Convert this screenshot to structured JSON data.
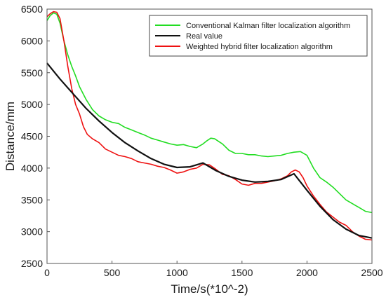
{
  "chart_data": {
    "type": "line",
    "xlabel": "Time/s(*10^-2)",
    "ylabel": "Distance/mm",
    "xlim": [
      0,
      2500
    ],
    "ylim": [
      2500,
      6500
    ],
    "xticks": [
      0,
      500,
      1000,
      1500,
      2000,
      2500
    ],
    "yticks": [
      2500,
      3000,
      3500,
      4000,
      4500,
      5000,
      5500,
      6000,
      6500
    ],
    "grid": false,
    "legend_position": "top-right",
    "series": [
      {
        "name": "Conventional Kalman filter localization algorithm",
        "color": "#22dd22",
        "x": [
          0,
          25,
          50,
          75,
          100,
          130,
          160,
          190,
          220,
          250,
          300,
          350,
          400,
          450,
          500,
          550,
          600,
          650,
          700,
          750,
          800,
          850,
          900,
          950,
          1000,
          1050,
          1100,
          1150,
          1200,
          1230,
          1260,
          1290,
          1320,
          1350,
          1400,
          1450,
          1500,
          1550,
          1600,
          1650,
          1700,
          1750,
          1800,
          1850,
          1900,
          1950,
          2000,
          2050,
          2100,
          2150,
          2200,
          2250,
          2300,
          2350,
          2400,
          2450,
          2500
        ],
        "y": [
          6320,
          6400,
          6440,
          6420,
          6280,
          6000,
          5780,
          5600,
          5450,
          5280,
          5080,
          4920,
          4820,
          4760,
          4720,
          4700,
          4640,
          4600,
          4560,
          4520,
          4470,
          4440,
          4410,
          4380,
          4360,
          4370,
          4340,
          4320,
          4380,
          4430,
          4470,
          4460,
          4420,
          4380,
          4280,
          4230,
          4230,
          4210,
          4210,
          4190,
          4180,
          4190,
          4200,
          4230,
          4250,
          4260,
          4200,
          4000,
          3850,
          3780,
          3700,
          3600,
          3500,
          3440,
          3380,
          3320,
          3300
        ]
      },
      {
        "name": "Real value",
        "color": "#111111",
        "x": [
          0,
          100,
          200,
          300,
          400,
          500,
          600,
          700,
          800,
          900,
          1000,
          1100,
          1200,
          1300,
          1400,
          1500,
          1600,
          1700,
          1800,
          1900,
          2000,
          2100,
          2200,
          2300,
          2400,
          2500
        ],
        "y": [
          5650,
          5400,
          5170,
          4940,
          4740,
          4560,
          4400,
          4270,
          4150,
          4060,
          4010,
          4020,
          4080,
          3960,
          3870,
          3810,
          3780,
          3790,
          3820,
          3910,
          3650,
          3400,
          3190,
          3040,
          2940,
          2900
        ]
      },
      {
        "name": "Weighted hybrid filter localization algorithm",
        "color": "#ee1111",
        "x": [
          0,
          25,
          50,
          75,
          100,
          130,
          160,
          190,
          220,
          250,
          280,
          310,
          350,
          400,
          450,
          500,
          550,
          600,
          650,
          700,
          750,
          800,
          850,
          900,
          950,
          1000,
          1050,
          1100,
          1150,
          1200,
          1250,
          1300,
          1350,
          1400,
          1450,
          1500,
          1550,
          1600,
          1650,
          1700,
          1750,
          1800,
          1850,
          1880,
          1910,
          1940,
          1970,
          2000,
          2050,
          2100,
          2150,
          2200,
          2250,
          2300,
          2350,
          2400,
          2450,
          2500
        ],
        "y": [
          6380,
          6430,
          6460,
          6450,
          6350,
          6000,
          5600,
          5250,
          5000,
          4850,
          4650,
          4530,
          4460,
          4400,
          4300,
          4250,
          4200,
          4180,
          4150,
          4100,
          4080,
          4060,
          4030,
          4010,
          3970,
          3920,
          3940,
          3980,
          4000,
          4060,
          4050,
          3980,
          3900,
          3880,
          3820,
          3750,
          3730,
          3760,
          3760,
          3780,
          3800,
          3830,
          3880,
          3940,
          3970,
          3940,
          3850,
          3720,
          3560,
          3430,
          3310,
          3230,
          3150,
          3100,
          3000,
          2930,
          2880,
          2870
        ]
      }
    ]
  }
}
